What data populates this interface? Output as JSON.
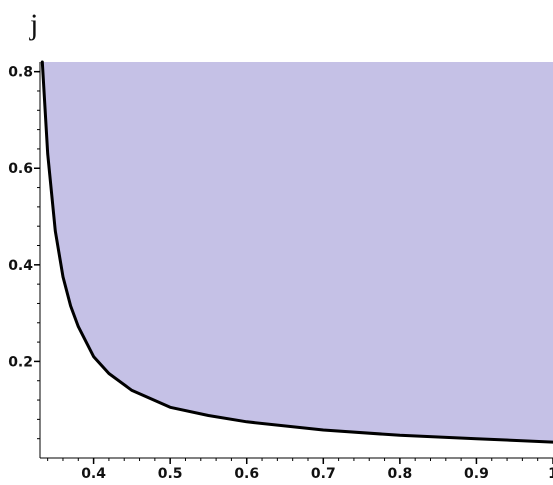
{
  "chart_data": {
    "type": "area",
    "title": "",
    "xlabel": "",
    "ylabel": "j",
    "xlim": [
      0.33,
      1.0
    ],
    "ylim": [
      0.0,
      0.82
    ],
    "x_ticks": [
      0.4,
      0.5,
      0.6,
      0.7,
      0.8,
      0.9,
      1
    ],
    "x_tick_labels": [
      "0.4",
      "0.5",
      "0.6",
      "0.7",
      "0.8",
      "0.9",
      "1"
    ],
    "y_ticks": [
      0.2,
      0.4,
      0.6,
      0.8
    ],
    "y_tick_labels": [
      "0.2",
      "0.4",
      "0.6",
      "0.8"
    ],
    "grid": false,
    "series": [
      {
        "x": [
          0.333,
          0.34,
          0.35,
          0.36,
          0.37,
          0.38,
          0.4,
          0.42,
          0.45,
          0.5,
          0.55,
          0.6,
          0.7,
          0.8,
          0.9,
          1.0
        ],
        "values": [
          0.82,
          0.63,
          0.47,
          0.375,
          0.315,
          0.272,
          0.21,
          0.175,
          0.14,
          0.105,
          0.088,
          0.075,
          0.058,
          0.047,
          0.04,
          0.033
        ]
      }
    ],
    "fill_color": "#c5c1e6",
    "line_color": "#000000",
    "fill": "above-curve"
  }
}
